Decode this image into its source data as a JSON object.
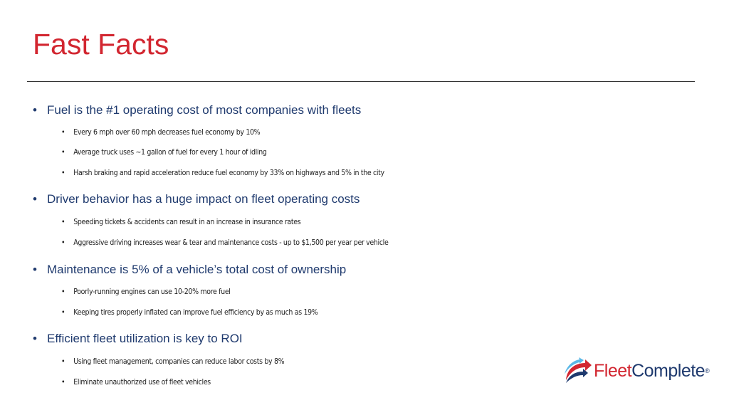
{
  "slide": {
    "title": "Fast Facts",
    "sections": [
      {
        "heading": "Fuel is the #1 operating cost of most companies with fleets",
        "items": [
          "Every 6 mph over 60 mph decreases fuel economy by 10%",
          "Average truck uses ~1 gallon of fuel for every 1 hour of idling",
          "Harsh braking and rapid acceleration reduce fuel economy by 33% on highways and 5% in the city"
        ]
      },
      {
        "heading": "Driver behavior has a huge impact on fleet operating costs",
        "items": [
          "Speeding tickets & accidents can result in an increase in insurance rates",
          "Aggressive driving increases wear & tear and maintenance costs - up to $1,500 per year per vehicle"
        ]
      },
      {
        "heading": "Maintenance is 5% of a vehicle’s total cost of ownership",
        "items": [
          "Poorly-running engines can use 10-20% more fuel",
          "Keeping tires properly inflated can improve fuel efficiency by as much as 19%"
        ]
      },
      {
        "heading": "Efficient fleet utilization is key to ROI",
        "items": [
          "Using fleet management, companies can reduce labor costs by 8%",
          "Eliminate unauthorized use of fleet vehicles"
        ]
      }
    ]
  },
  "logo": {
    "word1": "Fleet",
    "word2": "Complete",
    "mark": "®",
    "colors": {
      "red": "#d22630",
      "navy": "#1f3a6e",
      "cyan": "#5bb8e6"
    }
  },
  "bullet": "•"
}
